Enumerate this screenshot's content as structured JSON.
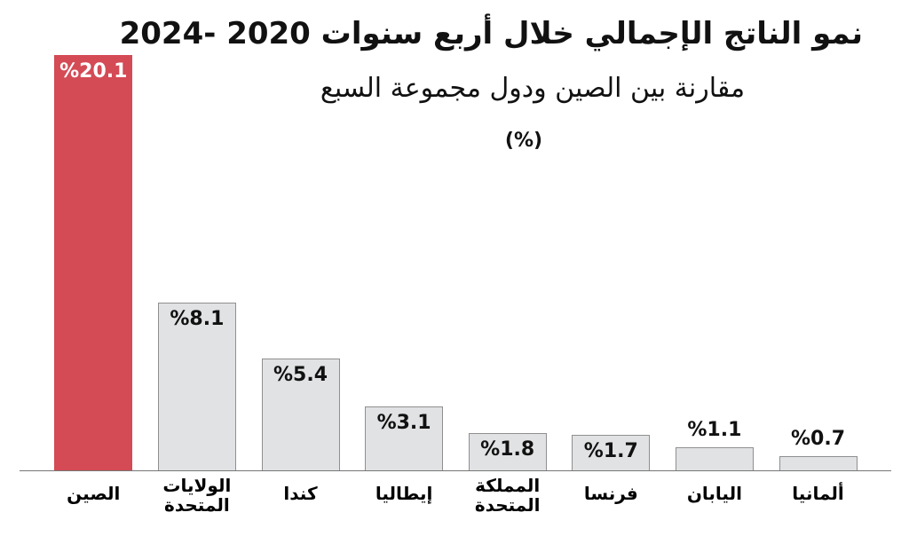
{
  "chart_data": {
    "type": "bar",
    "title": "نمو الناتج الإجمالي خلال أربع سنوات 2020 -2024",
    "subtitle": "مقارنة بين الصين ودول مجموعة السبع",
    "unit": "(%)",
    "categories": [
      "الصين",
      "الولايات المتحدة",
      "كندا",
      "إيطاليا",
      "المملكة المتحدة",
      "فرنسا",
      "اليابان",
      "ألمانيا"
    ],
    "values": [
      20.1,
      8.1,
      5.4,
      3.1,
      1.8,
      1.7,
      1.1,
      0.7
    ],
    "value_labels": [
      "%20.1",
      "%8.1",
      "%5.4",
      "%3.1",
      "%1.8",
      "%1.7",
      "%1.1",
      "%0.7"
    ],
    "colors": [
      "#d44a55",
      "#e1e2e4",
      "#e1e2e4",
      "#e1e2e4",
      "#e1e2e4",
      "#e1e2e4",
      "#e1e2e4",
      "#e1e2e4"
    ]
  }
}
